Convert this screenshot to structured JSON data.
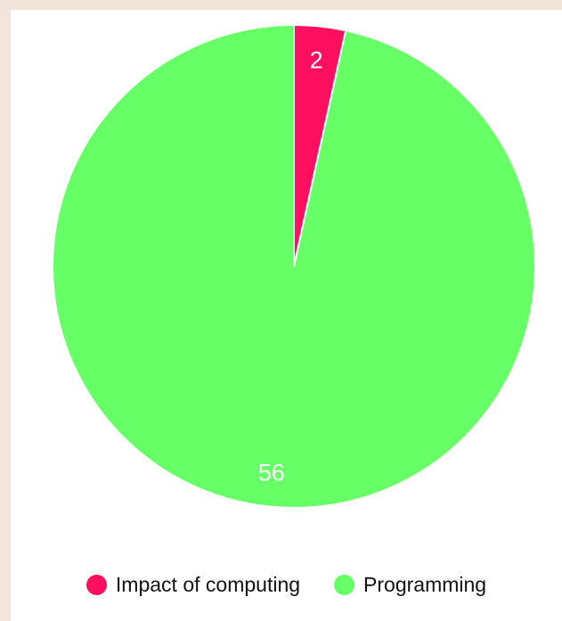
{
  "chart_data": {
    "type": "pie",
    "categories": [
      "Impact of computing",
      "Programming"
    ],
    "values": [
      2,
      56
    ],
    "colors": [
      "#ff0f5f",
      "#66ff66"
    ],
    "data_labels": [
      "2",
      "56"
    ],
    "legend_position": "bottom",
    "title": ""
  },
  "legend": {
    "items": [
      {
        "label": "Impact of computing",
        "color": "#ff0f5f"
      },
      {
        "label": "Programming",
        "color": "#66ff66"
      }
    ]
  }
}
